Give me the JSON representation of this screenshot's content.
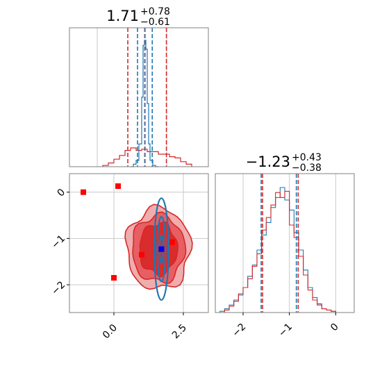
{
  "chart_data": [
    {
      "type": "histogram",
      "panel": "top-left",
      "title": {
        "value": "1.71",
        "upper": "+0.78",
        "lower": "−0.61"
      },
      "xlim": [
        -1.0,
        4.0
      ],
      "grid": true,
      "x_vlines_blue": [
        1.45,
        1.72,
        1.98
      ],
      "x_vlines_red": [
        1.1,
        1.71,
        2.49
      ],
      "series_blue": {
        "name": "blue",
        "bin_edges": [
          1.2,
          1.3,
          1.4,
          1.5,
          1.6,
          1.65,
          1.7,
          1.75,
          1.8,
          1.85,
          1.9,
          2.0,
          2.1,
          2.2
        ],
        "heights": [
          0.0,
          0.02,
          0.05,
          0.18,
          0.55,
          0.96,
          1.0,
          0.93,
          0.5,
          0.18,
          0.05,
          0.01,
          0.0
        ]
      },
      "series_red": {
        "name": "red",
        "bin_edges": [
          0.2,
          0.4,
          0.6,
          0.8,
          1.0,
          1.2,
          1.4,
          1.6,
          1.8,
          2.0,
          2.2,
          2.4,
          2.6,
          2.8,
          3.0,
          3.2,
          3.4
        ],
        "heights": [
          0.01,
          0.03,
          0.06,
          0.09,
          0.13,
          0.15,
          0.13,
          0.14,
          0.12,
          0.12,
          0.1,
          0.1,
          0.08,
          0.07,
          0.04,
          0.02
        ]
      }
    },
    {
      "type": "scatter",
      "panel": "bottom-left",
      "xlim": [
        -1.6,
        3.4
      ],
      "ylim": [
        -2.6,
        0.4
      ],
      "x_ticks": [
        0.0,
        2.5
      ],
      "x_tick_labels": [
        "0.0",
        "2.5"
      ],
      "y_ticks": [
        0,
        -1,
        -2
      ],
      "y_tick_labels": [
        "0",
        "−1",
        "−2"
      ],
      "grid": true,
      "red_square_points": [
        {
          "x": -1.1,
          "y": 0.0
        },
        {
          "x": 0.15,
          "y": 0.13
        },
        {
          "x": 0.0,
          "y": -1.85
        },
        {
          "x": 1.0,
          "y": -1.35
        },
        {
          "x": 2.1,
          "y": -1.08
        }
      ],
      "blue_square_point": {
        "x": 1.71,
        "y": -1.23
      },
      "red_contours": {
        "center": [
          1.6,
          -1.22
        ],
        "levels": [
          {
            "rx": 1.15,
            "ry": 0.88
          },
          {
            "rx": 0.95,
            "ry": 0.72
          },
          {
            "rx": 0.68,
            "ry": 0.55
          }
        ]
      },
      "blue_contours": {
        "center": [
          1.71,
          -1.23
        ],
        "levels": [
          {
            "rx": 0.26,
            "ry": 1.1
          },
          {
            "rx": 0.15,
            "ry": 0.7
          },
          {
            "rx": 0.07,
            "ry": 0.3
          }
        ]
      }
    },
    {
      "type": "histogram",
      "panel": "bottom-right",
      "title": {
        "value": "−1.23",
        "upper": "+0.43",
        "lower": "−0.38"
      },
      "xlim": [
        -2.6,
        0.4
      ],
      "x_ticks": [
        -2,
        -1,
        0
      ],
      "x_tick_labels": [
        "−2",
        "−1",
        "0"
      ],
      "grid": true,
      "x_vlines_blue": [
        -1.61,
        -0.85
      ],
      "x_vlines_red": [
        -1.58,
        -0.81
      ],
      "series_blue": {
        "name": "blue",
        "bin_edges": [
          -2.5,
          -2.4,
          -2.3,
          -2.2,
          -2.1,
          -2.0,
          -1.9,
          -1.8,
          -1.7,
          -1.6,
          -1.5,
          -1.4,
          -1.3,
          -1.2,
          -1.1,
          -1.0,
          -0.9,
          -0.8,
          -0.7,
          -0.6,
          -0.5,
          -0.4,
          -0.3,
          -0.2,
          -0.1,
          0.0
        ],
        "heights": [
          0.01,
          0.03,
          0.06,
          0.1,
          0.14,
          0.2,
          0.29,
          0.38,
          0.5,
          0.62,
          0.72,
          0.84,
          0.92,
          1.0,
          0.9,
          0.82,
          0.64,
          0.5,
          0.34,
          0.2,
          0.12,
          0.07,
          0.03,
          0.02,
          0.01
        ]
      },
      "series_red": {
        "name": "red",
        "bin_edges": [
          -2.5,
          -2.4,
          -2.3,
          -2.2,
          -2.1,
          -2.0,
          -1.9,
          -1.8,
          -1.7,
          -1.6,
          -1.5,
          -1.4,
          -1.3,
          -1.2,
          -1.1,
          -1.0,
          -0.9,
          -0.8,
          -0.7,
          -0.6,
          -0.5,
          -0.4,
          -0.3,
          -0.2,
          -0.1,
          0.0
        ],
        "heights": [
          0.0,
          0.02,
          0.05,
          0.09,
          0.15,
          0.2,
          0.27,
          0.37,
          0.47,
          0.66,
          0.76,
          0.86,
          0.96,
          0.92,
          0.97,
          0.7,
          0.6,
          0.45,
          0.3,
          0.18,
          0.1,
          0.06,
          0.03,
          0.02,
          0.01
        ]
      }
    }
  ],
  "colors": {
    "blue": "#1f77b4",
    "red": "#d62728",
    "blue_point": "#0000ff",
    "red_point": "#ff0000",
    "red_fill_dark": "#d62728",
    "red_fill_mid": "#e5575a",
    "red_fill_light": "#f0a3a4",
    "grid": "#c8c8c8",
    "frame": "#7f7f7f"
  }
}
